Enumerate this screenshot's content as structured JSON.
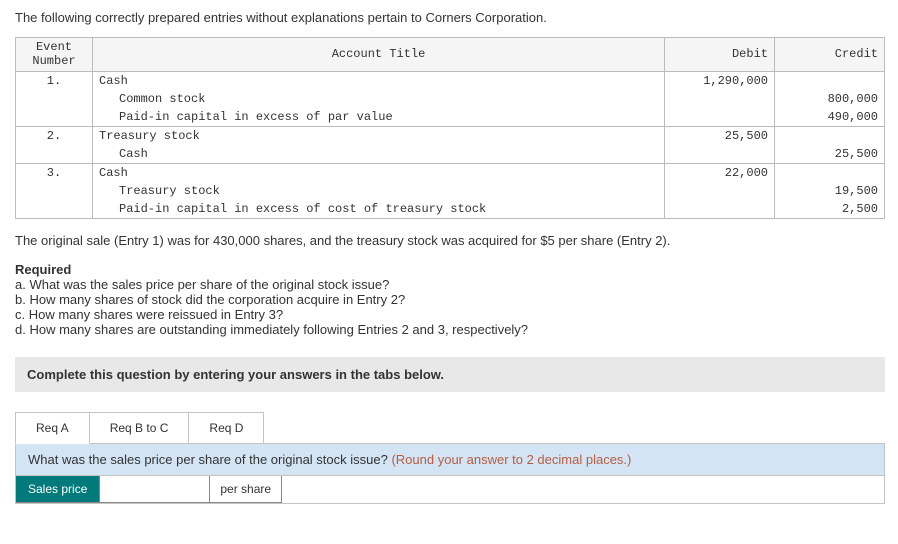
{
  "intro": "The following correctly prepared entries without explanations pertain to Corners Corporation.",
  "headers": {
    "event": "Event\nNumber",
    "account": "Account Title",
    "debit": "Debit",
    "credit": "Credit"
  },
  "entries": [
    {
      "num": "1.",
      "lines": [
        {
          "account": "Cash",
          "debit": "1,290,000",
          "credit": "",
          "indent": 0
        },
        {
          "account": "Common stock",
          "debit": "",
          "credit": "800,000",
          "indent": 1
        },
        {
          "account": "Paid-in capital in excess of par value",
          "debit": "",
          "credit": "490,000",
          "indent": 1
        }
      ]
    },
    {
      "num": "2.",
      "lines": [
        {
          "account": "Treasury stock",
          "debit": "25,500",
          "credit": "",
          "indent": 0
        },
        {
          "account": "Cash",
          "debit": "",
          "credit": "25,500",
          "indent": 1
        }
      ]
    },
    {
      "num": "3.",
      "lines": [
        {
          "account": "Cash",
          "debit": "22,000",
          "credit": "",
          "indent": 0
        },
        {
          "account": "Treasury stock",
          "debit": "",
          "credit": "19,500",
          "indent": 1
        },
        {
          "account": "Paid-in capital in excess of cost of treasury stock",
          "debit": "",
          "credit": "2,500",
          "indent": 1
        }
      ]
    }
  ],
  "context": "The original sale (Entry 1) was for 430,000 shares, and the treasury stock was acquired for $5 per share (Entry 2).",
  "required": {
    "heading": "Required",
    "items": [
      "a. What was the sales price per share of the original stock issue?",
      "b. How many shares of stock did the corporation acquire in Entry 2?",
      "c. How many shares were reissued in Entry 3?",
      "d. How many shares are outstanding immediately following Entries 2 and 3, respectively?"
    ]
  },
  "instruction": "Complete this question by entering your answers in the tabs below.",
  "tabs": {
    "a": "Req A",
    "bc": "Req B to C",
    "d": "Req D"
  },
  "panel": {
    "question": "What was the sales price per share of the original stock issue? ",
    "hint": "(Round your answer to 2 decimal places.)",
    "label": "Sales price",
    "unit": "per share",
    "value": ""
  }
}
